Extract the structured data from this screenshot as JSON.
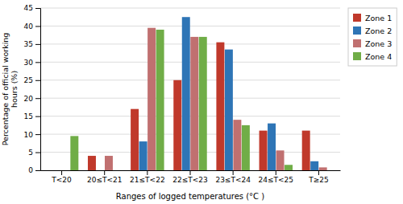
{
  "chart_data": {
    "type": "bar",
    "categories": [
      "T<20",
      "20≤T<21",
      "21≤T<22",
      "22≤T<23",
      "23≤T<24",
      "24≤T<25",
      "T≥25"
    ],
    "series": [
      {
        "name": "Zone 1",
        "color": "#C0392B",
        "values": [
          0,
          4,
          17,
          25,
          35.5,
          11,
          11
        ]
      },
      {
        "name": "Zone 2",
        "color": "#2E75B6",
        "values": [
          0,
          0,
          8,
          42.5,
          33.5,
          13,
          2.5
        ]
      },
      {
        "name": "Zone 3",
        "color": "#C07070",
        "values": [
          0,
          4,
          39.5,
          37,
          14,
          5.5,
          0.8
        ]
      },
      {
        "name": "Zone 4",
        "color": "#70AD47",
        "values": [
          9.5,
          0,
          39,
          37,
          12.5,
          1.5,
          0
        ]
      }
    ],
    "xlabel": "Ranges of logged temperatures (°C )",
    "ylabel": "Percentage of official working\nhours (%)",
    "ylim": [
      0,
      45
    ],
    "yticks": [
      0,
      5,
      10,
      15,
      20,
      25,
      30,
      35,
      40,
      45
    ],
    "grid": true,
    "legend": "right"
  }
}
